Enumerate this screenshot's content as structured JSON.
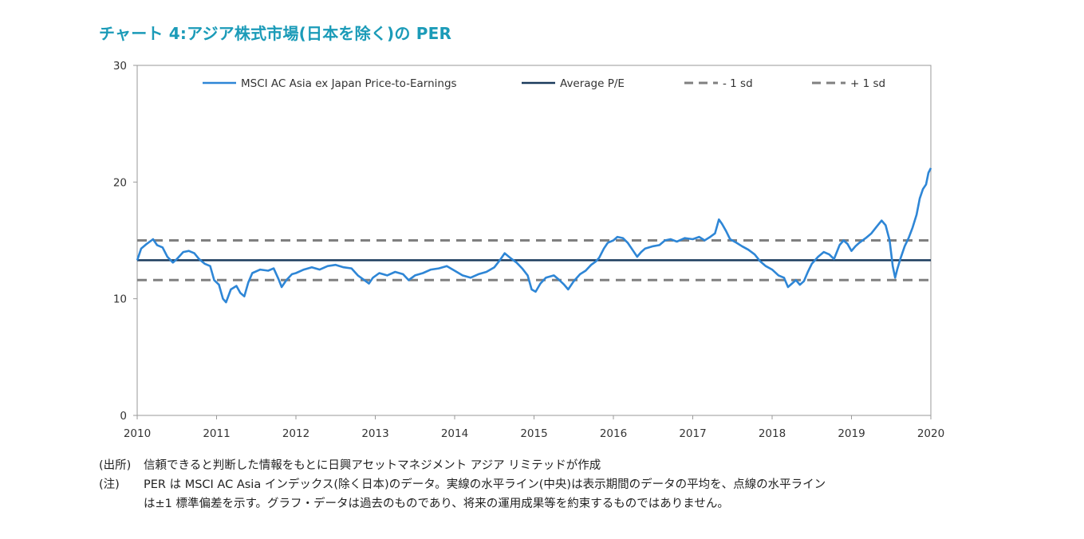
{
  "title": "チャート 4:アジア株式市場(日本を除く)の PER",
  "notes": {
    "source_tag": "(出所)",
    "source_text": "信頼できると判断した情報をもとに日興アセットマネジメント アジア リミテッドが作成",
    "note_tag": "(注)",
    "note_line1": "PER は MSCI AC Asia インデックス(除く日本)のデータ。実線の水平ライン(中央)は表示期間のデータの平均を、点線の水平ライン",
    "note_line2": "は±1 標準偏差を示す。グラフ・データは過去のものであり、将来の運用成果等を約束するものではありません。"
  },
  "chart_data": {
    "type": "line",
    "title": "",
    "xlabel": "",
    "ylabel": "",
    "xlim": [
      2010,
      2020
    ],
    "ylim": [
      0,
      30
    ],
    "x_ticks": [
      "2010",
      "2011",
      "2012",
      "2013",
      "2014",
      "2015",
      "2016",
      "2017",
      "2018",
      "2019",
      "2020"
    ],
    "y_ticks": [
      "0",
      "10",
      "20",
      "30"
    ],
    "grid": false,
    "legend_position": "top",
    "series": [
      {
        "name": "MSCI AC Asia ex Japan Price-to-Earnings",
        "style": "line",
        "color": "#2e86d6",
        "points": [
          [
            2010.0,
            13.3
          ],
          [
            2010.05,
            14.3
          ],
          [
            2010.12,
            14.7
          ],
          [
            2010.2,
            15.1
          ],
          [
            2010.25,
            14.6
          ],
          [
            2010.32,
            14.4
          ],
          [
            2010.38,
            13.6
          ],
          [
            2010.45,
            13.1
          ],
          [
            2010.5,
            13.4
          ],
          [
            2010.58,
            14.0
          ],
          [
            2010.65,
            14.1
          ],
          [
            2010.72,
            13.9
          ],
          [
            2010.78,
            13.4
          ],
          [
            2010.85,
            13.0
          ],
          [
            2010.92,
            12.8
          ],
          [
            2010.97,
            11.6
          ],
          [
            2011.03,
            11.2
          ],
          [
            2011.08,
            10.0
          ],
          [
            2011.12,
            9.7
          ],
          [
            2011.18,
            10.8
          ],
          [
            2011.25,
            11.1
          ],
          [
            2011.3,
            10.5
          ],
          [
            2011.35,
            10.2
          ],
          [
            2011.4,
            11.4
          ],
          [
            2011.45,
            12.2
          ],
          [
            2011.55,
            12.5
          ],
          [
            2011.65,
            12.4
          ],
          [
            2011.72,
            12.6
          ],
          [
            2011.78,
            11.7
          ],
          [
            2011.82,
            11.0
          ],
          [
            2011.88,
            11.6
          ],
          [
            2011.95,
            12.1
          ],
          [
            2012.0,
            12.2
          ],
          [
            2012.1,
            12.5
          ],
          [
            2012.2,
            12.7
          ],
          [
            2012.3,
            12.5
          ],
          [
            2012.4,
            12.8
          ],
          [
            2012.5,
            12.9
          ],
          [
            2012.6,
            12.7
          ],
          [
            2012.7,
            12.6
          ],
          [
            2012.78,
            12.0
          ],
          [
            2012.82,
            11.8
          ],
          [
            2012.88,
            11.5
          ],
          [
            2012.92,
            11.3
          ],
          [
            2012.97,
            11.8
          ],
          [
            2013.05,
            12.2
          ],
          [
            2013.15,
            12.0
          ],
          [
            2013.25,
            12.3
          ],
          [
            2013.35,
            12.1
          ],
          [
            2013.42,
            11.6
          ],
          [
            2013.5,
            12.0
          ],
          [
            2013.6,
            12.2
          ],
          [
            2013.7,
            12.5
          ],
          [
            2013.8,
            12.6
          ],
          [
            2013.9,
            12.8
          ],
          [
            2014.0,
            12.4
          ],
          [
            2014.1,
            12.0
          ],
          [
            2014.2,
            11.8
          ],
          [
            2014.3,
            12.1
          ],
          [
            2014.4,
            12.3
          ],
          [
            2014.5,
            12.7
          ],
          [
            2014.58,
            13.4
          ],
          [
            2014.63,
            13.9
          ],
          [
            2014.7,
            13.5
          ],
          [
            2014.78,
            13.1
          ],
          [
            2014.85,
            12.6
          ],
          [
            2014.92,
            12.0
          ],
          [
            2014.97,
            10.8
          ],
          [
            2015.02,
            10.6
          ],
          [
            2015.08,
            11.3
          ],
          [
            2015.15,
            11.8
          ],
          [
            2015.25,
            12.0
          ],
          [
            2015.32,
            11.6
          ],
          [
            2015.38,
            11.2
          ],
          [
            2015.43,
            10.8
          ],
          [
            2015.5,
            11.5
          ],
          [
            2015.58,
            12.1
          ],
          [
            2015.65,
            12.4
          ],
          [
            2015.72,
            12.9
          ],
          [
            2015.78,
            13.2
          ],
          [
            2015.82,
            13.5
          ],
          [
            2015.88,
            14.3
          ],
          [
            2015.93,
            14.8
          ],
          [
            2016.0,
            15.0
          ],
          [
            2016.05,
            15.3
          ],
          [
            2016.12,
            15.2
          ],
          [
            2016.18,
            14.8
          ],
          [
            2016.25,
            14.1
          ],
          [
            2016.3,
            13.6
          ],
          [
            2016.35,
            14.0
          ],
          [
            2016.4,
            14.3
          ],
          [
            2016.5,
            14.5
          ],
          [
            2016.58,
            14.6
          ],
          [
            2016.65,
            15.0
          ],
          [
            2016.72,
            15.1
          ],
          [
            2016.8,
            14.9
          ],
          [
            2016.9,
            15.2
          ],
          [
            2017.0,
            15.1
          ],
          [
            2017.08,
            15.3
          ],
          [
            2017.15,
            15.0
          ],
          [
            2017.22,
            15.3
          ],
          [
            2017.28,
            15.6
          ],
          [
            2017.33,
            16.8
          ],
          [
            2017.37,
            16.4
          ],
          [
            2017.42,
            15.8
          ],
          [
            2017.47,
            15.1
          ],
          [
            2017.55,
            14.8
          ],
          [
            2017.62,
            14.5
          ],
          [
            2017.7,
            14.2
          ],
          [
            2017.78,
            13.8
          ],
          [
            2017.85,
            13.2
          ],
          [
            2017.92,
            12.8
          ],
          [
            2018.0,
            12.5
          ],
          [
            2018.08,
            12.0
          ],
          [
            2018.15,
            11.8
          ],
          [
            2018.2,
            11.0
          ],
          [
            2018.25,
            11.3
          ],
          [
            2018.3,
            11.6
          ],
          [
            2018.35,
            11.2
          ],
          [
            2018.4,
            11.5
          ],
          [
            2018.45,
            12.3
          ],
          [
            2018.5,
            13.0
          ],
          [
            2018.58,
            13.6
          ],
          [
            2018.65,
            14.0
          ],
          [
            2018.72,
            13.8
          ],
          [
            2018.78,
            13.4
          ],
          [
            2018.85,
            14.6
          ],
          [
            2018.9,
            15.0
          ],
          [
            2018.95,
            14.7
          ],
          [
            2019.0,
            14.1
          ],
          [
            2019.05,
            14.5
          ],
          [
            2019.1,
            14.8
          ],
          [
            2019.18,
            15.2
          ],
          [
            2019.25,
            15.6
          ],
          [
            2019.32,
            16.2
          ],
          [
            2019.38,
            16.7
          ],
          [
            2019.43,
            16.3
          ],
          [
            2019.48,
            15.0
          ],
          [
            2019.52,
            12.8
          ],
          [
            2019.55,
            11.8
          ],
          [
            2019.58,
            12.6
          ],
          [
            2019.62,
            13.5
          ],
          [
            2019.67,
            14.5
          ],
          [
            2019.72,
            15.2
          ],
          [
            2019.77,
            16.1
          ],
          [
            2019.82,
            17.2
          ],
          [
            2019.86,
            18.6
          ],
          [
            2019.9,
            19.4
          ],
          [
            2019.94,
            19.8
          ],
          [
            2019.97,
            20.8
          ],
          [
            2020.0,
            21.2
          ]
        ]
      },
      {
        "name": "Average P/E",
        "style": "solid",
        "color": "#1a3a5c",
        "value": 13.3
      },
      {
        "name": "- 1 sd",
        "style": "dashed",
        "color": "#808080",
        "value": 11.6
      },
      {
        "name": "+ 1 sd",
        "style": "dashed",
        "color": "#808080",
        "value": 15.0
      }
    ]
  }
}
